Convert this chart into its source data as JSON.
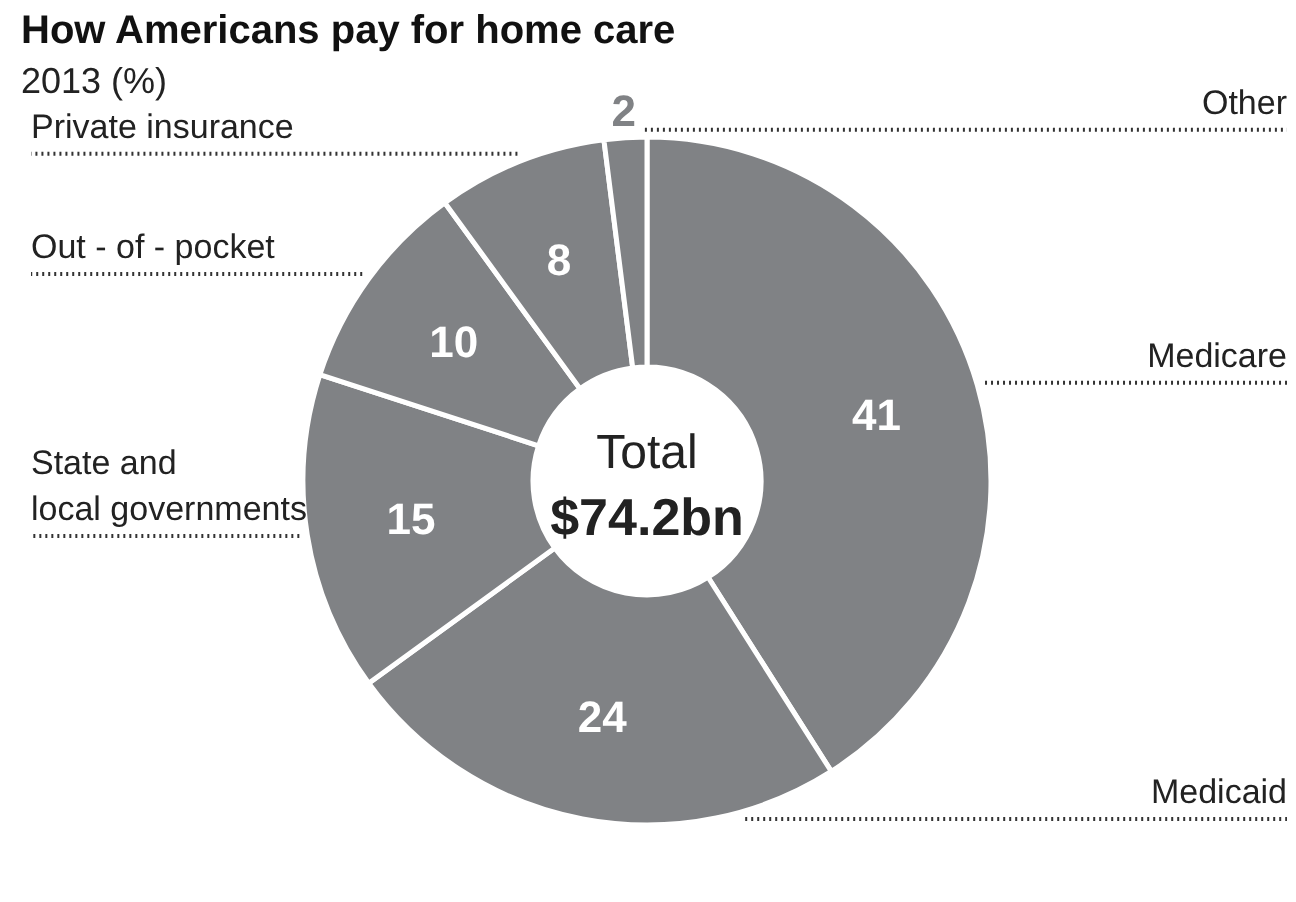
{
  "chart_data": {
    "type": "donut",
    "title": "How Americans pay for home care",
    "subtitle": "2013 (%)",
    "categories": [
      "Medicare",
      "Medicaid",
      "State and\nlocal governments",
      "Out - of - pocket",
      "Private insurance",
      "Other"
    ],
    "values": [
      41,
      24,
      15,
      10,
      8,
      2
    ],
    "colors": [
      "#808285",
      "#808285",
      "#808285",
      "#808285",
      "#808285",
      "#808285"
    ],
    "data_labels": true,
    "annotations": [
      "Total",
      "$74.2bn"
    ]
  }
}
